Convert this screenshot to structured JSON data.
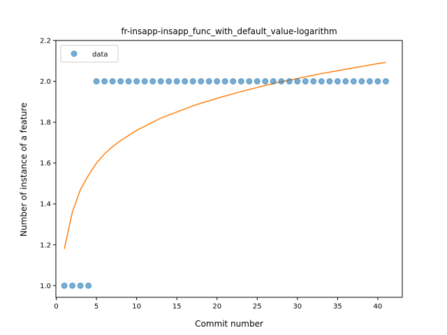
{
  "chart_data": {
    "type": "scatter",
    "title": "fr-insapp-insapp_func_with_default_value-logarithm",
    "xlabel": "Commit number",
    "ylabel": "Number of instance of a feature",
    "xlim": [
      -0.05,
      43.05
    ],
    "ylim": [
      0.943,
      2.2
    ],
    "xticks": [
      0,
      5,
      10,
      15,
      20,
      25,
      30,
      35,
      40
    ],
    "yticks": [
      1.0,
      1.2,
      1.4,
      1.6,
      1.8,
      2.0,
      2.2
    ],
    "grid": false,
    "legend": {
      "position": "top-left",
      "entries": [
        "data"
      ]
    },
    "series": [
      {
        "name": "data",
        "kind": "scatter",
        "color": "#1f77b4",
        "x": [
          1,
          2,
          3,
          4,
          5,
          6,
          7,
          8,
          9,
          10,
          11,
          12,
          13,
          14,
          15,
          16,
          17,
          18,
          19,
          20,
          21,
          22,
          23,
          24,
          25,
          26,
          27,
          28,
          29,
          30,
          31,
          32,
          33,
          34,
          35,
          36,
          37,
          38,
          39,
          40,
          41
        ],
        "y": [
          1,
          1,
          1,
          1,
          2,
          2,
          2,
          2,
          2,
          2,
          2,
          2,
          2,
          2,
          2,
          2,
          2,
          2,
          2,
          2,
          2,
          2,
          2,
          2,
          2,
          2,
          2,
          2,
          2,
          2,
          2,
          2,
          2,
          2,
          2,
          2,
          2,
          2,
          2,
          2,
          2
        ]
      },
      {
        "kind": "line",
        "color": "#ff7f0e",
        "x": [
          1,
          2,
          3,
          4,
          5,
          6,
          7,
          8,
          9,
          10,
          11,
          12,
          13,
          14,
          15,
          16,
          17,
          18,
          19,
          20,
          21,
          22,
          23,
          24,
          25,
          26,
          27,
          28,
          29,
          30,
          31,
          32,
          33,
          34,
          35,
          36,
          37,
          38,
          39,
          40,
          41
        ],
        "y": [
          1.18,
          1.36,
          1.47,
          1.54,
          1.6,
          1.645,
          1.68,
          1.71,
          1.735,
          1.76,
          1.78,
          1.8,
          1.82,
          1.835,
          1.85,
          1.865,
          1.88,
          1.893,
          1.905,
          1.917,
          1.928,
          1.939,
          1.95,
          1.96,
          1.97,
          1.98,
          1.989,
          1.998,
          2.006,
          2.014,
          2.022,
          2.03,
          2.038,
          2.045,
          2.052,
          2.059,
          2.066,
          2.073,
          2.08,
          2.087,
          2.093
        ]
      }
    ]
  }
}
